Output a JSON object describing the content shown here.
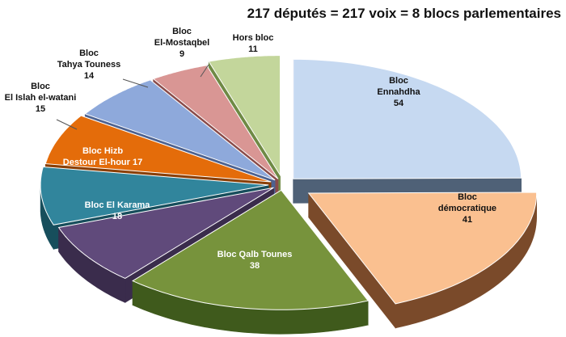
{
  "chart_data": {
    "type": "pie",
    "title": "217 députés = 217 voix = 8 blocs parlementaires",
    "total": 217,
    "series": [
      {
        "name": "Bloc Ennahdha",
        "label_lines": [
          "Bloc",
          "Ennahdha",
          "54"
        ],
        "value": 54,
        "color": "#c6d9f1",
        "side": "#4f6177"
      },
      {
        "name": "Bloc démocratique",
        "label_lines": [
          "Bloc",
          "démocratique",
          "41"
        ],
        "value": 41,
        "color": "#fac090",
        "side": "#7a4a2a"
      },
      {
        "name": "Bloc Qalb Tounes",
        "label_lines": [
          "Bloc Qalb Tounes",
          "38"
        ],
        "value": 38,
        "color": "#77933c",
        "side": "#3f5a1c"
      },
      {
        "name": "Bloc El Karama",
        "label_lines": [
          "Bloc El Karama",
          "18"
        ],
        "value": 18,
        "color": "#604a7b",
        "side": "#3a2c4c"
      },
      {
        "name": "Bloc Hizb Destour El-hour",
        "label_lines": [
          "Bloc Hizb",
          "Destour El-hour 17"
        ],
        "value": 17,
        "color": "#31859c",
        "side": "#174e5c"
      },
      {
        "name": "Bloc El Islah el-watani",
        "label_lines": [
          "Bloc",
          "El Islah el-watani",
          "15"
        ],
        "value": 15,
        "color": "#e46c0a",
        "side": "#8a3f05"
      },
      {
        "name": "Bloc Tahya Touness",
        "label_lines": [
          "Bloc",
          "Tahya Touness",
          "14"
        ],
        "value": 14,
        "color": "#8ea9db",
        "side": "#4d6290"
      },
      {
        "name": "Bloc El-Mostaqbel",
        "label_lines": [
          "Bloc",
          "El-Mostaqbel",
          "9"
        ],
        "value": 9,
        "color": "#d99694",
        "side": "#8a4b4a"
      },
      {
        "name": "Hors bloc",
        "label_lines": [
          "Hors bloc",
          "11"
        ],
        "value": 11,
        "color": "#c3d69b",
        "side": "#6f8a45"
      }
    ]
  }
}
